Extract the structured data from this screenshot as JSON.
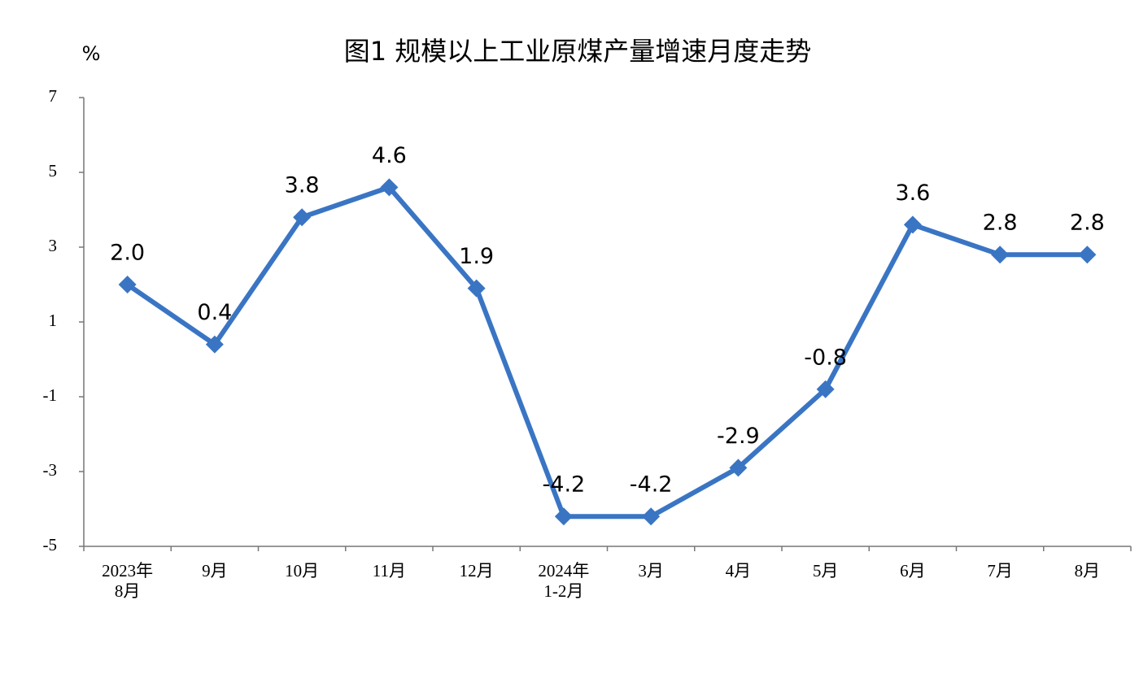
{
  "chart_data": {
    "type": "line",
    "title": "图1  规模以上工业原煤产量增速月度走势",
    "ylabel": "%",
    "categories": [
      "2023年\n8月",
      "9月",
      "10月",
      "11月",
      "12月",
      "2024年\n1-2月",
      "3月",
      "4月",
      "5月",
      "6月",
      "7月",
      "8月"
    ],
    "series": [
      {
        "name": "原煤产量增速",
        "color": "#3a75c4",
        "values": [
          2.0,
          0.4,
          3.8,
          4.6,
          1.9,
          -4.2,
          -4.2,
          -2.9,
          -0.8,
          3.6,
          2.8,
          2.8
        ],
        "value_labels": [
          "2.0",
          "0.4",
          "3.8",
          "4.6",
          "1.9",
          "-4.2",
          "-4.2",
          "-2.9",
          "-0.8",
          "3.6",
          "2.8",
          "2.8"
        ]
      }
    ],
    "ylim": [
      -5,
      7
    ],
    "yticks": [
      -5,
      -3,
      -1,
      1,
      3,
      5,
      7
    ],
    "grid": false
  }
}
